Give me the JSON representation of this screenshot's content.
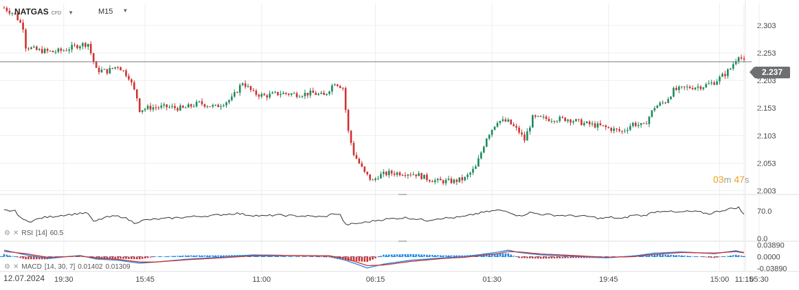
{
  "header": {
    "symbol": "NATGAS",
    "instrument_type": "CFD",
    "symbol_caret": "chevron-down-icon",
    "timeframe": "M15",
    "timeframe_caret": "chevron-down-icon"
  },
  "price_panel": {
    "current_price_label": "2.237",
    "countdown": {
      "minutes": "03",
      "minutes_unit": "m",
      "seconds": "47",
      "seconds_unit": "s"
    }
  },
  "rsi_panel": {
    "label": "RSI",
    "params": "[14]",
    "value": "60.5"
  },
  "macd_panel": {
    "label": "MACD",
    "params": "[14, 30, 7]",
    "value1": "0.01402",
    "value2": "0.01309"
  },
  "x_axis": {
    "date_label": "12.07.2024"
  },
  "colors": {
    "up": "#1a8a5a",
    "down": "#d0312d",
    "grid": "#eeeeee",
    "line": "#333333",
    "signal": "#d0312d",
    "macd": "#1e88e5"
  },
  "chart_data": [
    {
      "type": "candlestick",
      "title": "NATGAS",
      "yticks": [
        "2.303",
        "2.253",
        "2.203",
        "2.153",
        "2.103",
        "2.053",
        "2.003"
      ],
      "ylim": [
        1.996,
        2.343
      ],
      "xticks": [
        "19:30",
        "15:45",
        "11:00",
        "06:15",
        "01:30",
        "19:45",
        "15:00",
        "11:15",
        "05:30"
      ],
      "current_price": 2.237,
      "close_path": [
        [
          0,
          2.335
        ],
        [
          4,
          2.323
        ],
        [
          7,
          2.3
        ],
        [
          8,
          2.265
        ],
        [
          12,
          2.258
        ],
        [
          18,
          2.255
        ],
        [
          22,
          2.258
        ],
        [
          28,
          2.268
        ],
        [
          31,
          2.27
        ],
        [
          32,
          2.253
        ],
        [
          34,
          2.222
        ],
        [
          38,
          2.22
        ],
        [
          42,
          2.23
        ],
        [
          46,
          2.21
        ],
        [
          49,
          2.172
        ],
        [
          50,
          2.15
        ],
        [
          54,
          2.154
        ],
        [
          60,
          2.155
        ],
        [
          66,
          2.152
        ],
        [
          72,
          2.162
        ],
        [
          78,
          2.155
        ],
        [
          84,
          2.17
        ],
        [
          88,
          2.2
        ],
        [
          92,
          2.18
        ],
        [
          96,
          2.175
        ],
        [
          102,
          2.18
        ],
        [
          108,
          2.178
        ],
        [
          114,
          2.18
        ],
        [
          118,
          2.175
        ],
        [
          122,
          2.2
        ],
        [
          125,
          2.19
        ],
        [
          127,
          2.11
        ],
        [
          129,
          2.07
        ],
        [
          133,
          2.035
        ],
        [
          136,
          2.02
        ],
        [
          138,
          2.03
        ],
        [
          142,
          2.035
        ],
        [
          148,
          2.035
        ],
        [
          152,
          2.033
        ],
        [
          156,
          2.025
        ],
        [
          160,
          2.02
        ],
        [
          166,
          2.02
        ],
        [
          170,
          2.025
        ],
        [
          174,
          2.045
        ],
        [
          178,
          2.1
        ],
        [
          182,
          2.13
        ],
        [
          186,
          2.128
        ],
        [
          190,
          2.11
        ],
        [
          192,
          2.095
        ],
        [
          195,
          2.135
        ],
        [
          202,
          2.133
        ],
        [
          208,
          2.133
        ],
        [
          214,
          2.125
        ],
        [
          220,
          2.12
        ],
        [
          224,
          2.115
        ],
        [
          228,
          2.11
        ],
        [
          232,
          2.125
        ],
        [
          236,
          2.12
        ],
        [
          240,
          2.155
        ],
        [
          244,
          2.165
        ],
        [
          247,
          2.185
        ],
        [
          252,
          2.19
        ],
        [
          258,
          2.193
        ],
        [
          262,
          2.2
        ],
        [
          266,
          2.215
        ],
        [
          268,
          2.225
        ],
        [
          271,
          2.25
        ],
        [
          273,
          2.237
        ]
      ]
    },
    {
      "type": "line",
      "title": "RSI [14]",
      "yticks": [
        "70.0",
        "0.0"
      ],
      "ylim": [
        0,
        100
      ],
      "values": [
        [
          0,
          72
        ],
        [
          4,
          70
        ],
        [
          7,
          47
        ],
        [
          10,
          44
        ],
        [
          14,
          53
        ],
        [
          18,
          56
        ],
        [
          22,
          60
        ],
        [
          26,
          62
        ],
        [
          28,
          65
        ],
        [
          31,
          64
        ],
        [
          33,
          42
        ],
        [
          37,
          53
        ],
        [
          41,
          57
        ],
        [
          44,
          55
        ],
        [
          48,
          40
        ],
        [
          52,
          47
        ],
        [
          58,
          50
        ],
        [
          64,
          53
        ],
        [
          70,
          56
        ],
        [
          76,
          58
        ],
        [
          82,
          62
        ],
        [
          86,
          64
        ],
        [
          90,
          60
        ],
        [
          96,
          57
        ],
        [
          100,
          60
        ],
        [
          106,
          58
        ],
        [
          112,
          57
        ],
        [
          118,
          55
        ],
        [
          122,
          64
        ],
        [
          124,
          60
        ],
        [
          126,
          35
        ],
        [
          130,
          38
        ],
        [
          134,
          42
        ],
        [
          138,
          47
        ],
        [
          142,
          50
        ],
        [
          148,
          53
        ],
        [
          152,
          50
        ],
        [
          156,
          46
        ],
        [
          160,
          51
        ],
        [
          166,
          53
        ],
        [
          170,
          56
        ],
        [
          174,
          63
        ],
        [
          178,
          68
        ],
        [
          182,
          72
        ],
        [
          186,
          69
        ],
        [
          190,
          57
        ],
        [
          194,
          66
        ],
        [
          198,
          62
        ],
        [
          204,
          59
        ],
        [
          210,
          58
        ],
        [
          216,
          56
        ],
        [
          220,
          51
        ],
        [
          224,
          54
        ],
        [
          228,
          50
        ],
        [
          232,
          60
        ],
        [
          236,
          58
        ],
        [
          240,
          68
        ],
        [
          244,
          71
        ],
        [
          248,
          66
        ],
        [
          252,
          69
        ],
        [
          256,
          68
        ],
        [
          260,
          63
        ],
        [
          264,
          70
        ],
        [
          268,
          76
        ],
        [
          271,
          79
        ],
        [
          273,
          60.5
        ]
      ]
    },
    {
      "type": "bar",
      "title": "MACD [14, 30, 7]",
      "yticks": [
        "0.03890",
        "0.0000",
        "-0.03890"
      ],
      "ylim": [
        -0.045,
        0.045
      ],
      "series": [
        {
          "name": "MACD",
          "values": [
            [
              0,
              0.022
            ],
            [
              8,
              0.006
            ],
            [
              16,
              -0.006
            ],
            [
              28,
              0.004
            ],
            [
              34,
              -0.008
            ],
            [
              42,
              -0.012
            ],
            [
              50,
              -0.022
            ],
            [
              56,
              -0.018
            ],
            [
              68,
              -0.008
            ],
            [
              80,
              -0.002
            ],
            [
              92,
              0.006
            ],
            [
              108,
              0.004
            ],
            [
              120,
              0.002
            ],
            [
              126,
              -0.012
            ],
            [
              134,
              -0.038
            ],
            [
              140,
              -0.025
            ],
            [
              150,
              -0.012
            ],
            [
              162,
              -0.004
            ],
            [
              170,
              0.0
            ],
            [
              182,
              0.015
            ],
            [
              186,
              0.022
            ],
            [
              190,
              0.014
            ],
            [
              198,
              0.006
            ],
            [
              210,
              0.002
            ],
            [
              222,
              -0.004
            ],
            [
              232,
              0.002
            ],
            [
              240,
              0.012
            ],
            [
              250,
              0.016
            ],
            [
              262,
              0.01
            ],
            [
              270,
              0.02
            ],
            [
              273,
              0.01402
            ]
          ]
        },
        {
          "name": "Signal",
          "values": [
            [
              0,
              0.018
            ],
            [
              8,
              0.01
            ],
            [
              16,
              -0.002
            ],
            [
              28,
              0.002
            ],
            [
              34,
              -0.004
            ],
            [
              42,
              -0.009
            ],
            [
              50,
              -0.018
            ],
            [
              56,
              -0.018
            ],
            [
              68,
              -0.01
            ],
            [
              80,
              -0.004
            ],
            [
              92,
              0.003
            ],
            [
              108,
              0.004
            ],
            [
              120,
              0.003
            ],
            [
              126,
              -0.006
            ],
            [
              134,
              -0.03
            ],
            [
              140,
              -0.028
            ],
            [
              150,
              -0.016
            ],
            [
              162,
              -0.006
            ],
            [
              170,
              -0.002
            ],
            [
              182,
              0.01
            ],
            [
              186,
              0.017
            ],
            [
              190,
              0.016
            ],
            [
              198,
              0.009
            ],
            [
              210,
              0.004
            ],
            [
              222,
              -0.002
            ],
            [
              232,
              0.0
            ],
            [
              240,
              0.008
            ],
            [
              250,
              0.014
            ],
            [
              262,
              0.012
            ],
            [
              270,
              0.017
            ],
            [
              273,
              0.01309
            ]
          ]
        }
      ]
    }
  ]
}
